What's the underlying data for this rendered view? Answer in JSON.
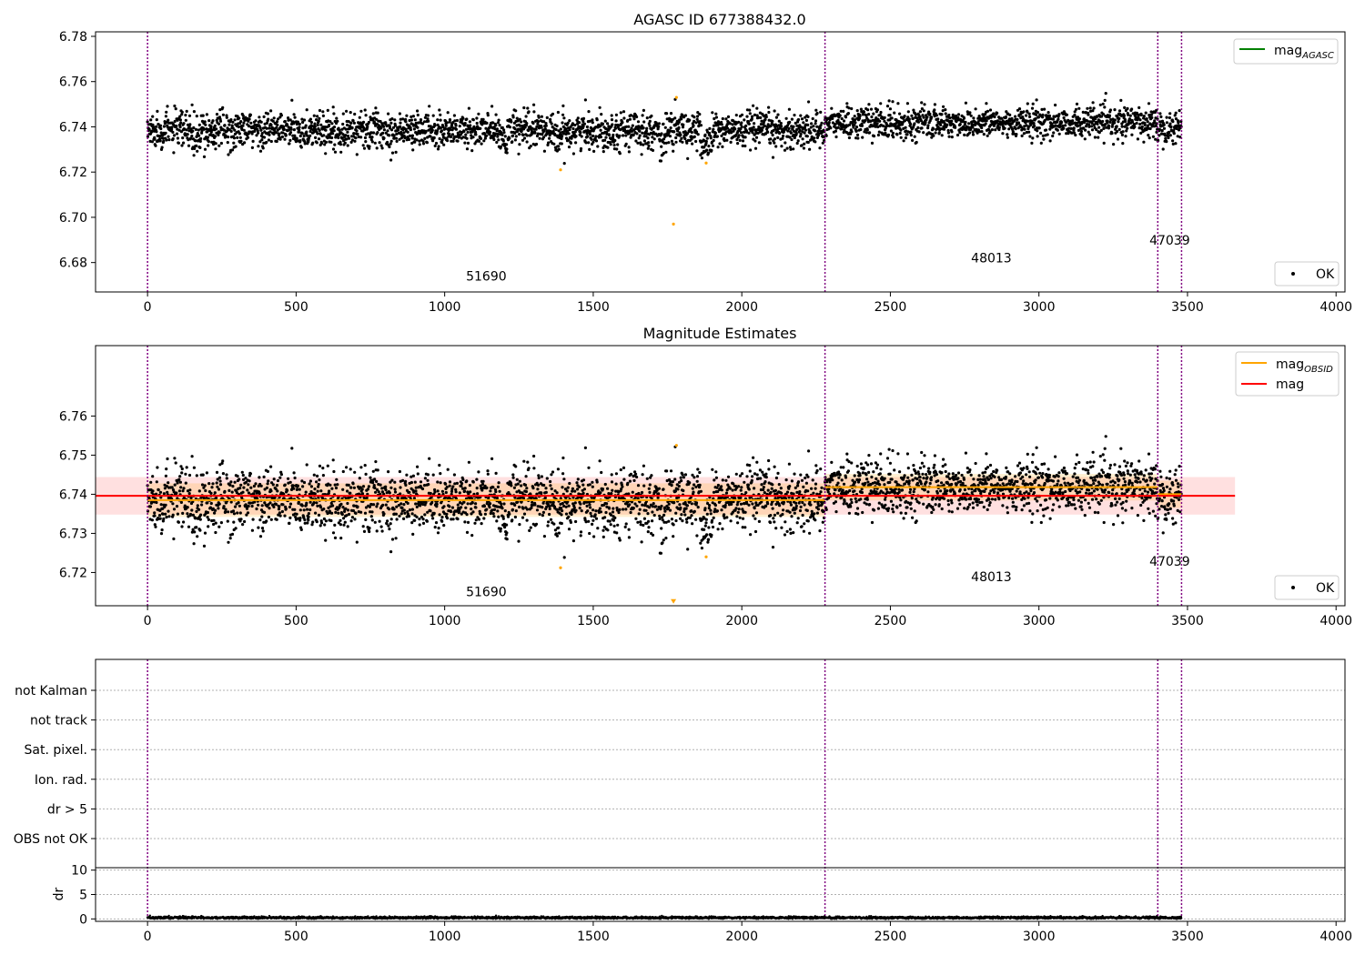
{
  "chart_data": [
    {
      "type": "scatter",
      "title": "AGASC ID 677388432.0",
      "xlim": [
        -175,
        4030
      ],
      "ylim": [
        6.667,
        6.782
      ],
      "xticks": [
        0,
        500,
        1000,
        1500,
        2000,
        2500,
        3000,
        3500,
        4000
      ],
      "yticks": [
        6.68,
        6.7,
        6.72,
        6.74,
        6.76,
        6.78
      ],
      "ytick_labels": [
        "6.68",
        "6.70",
        "6.72",
        "6.74",
        "6.76",
        "6.78"
      ],
      "obsid_boundaries": [
        0,
        2280,
        3400,
        3480
      ],
      "obsid_labels": [
        {
          "text": "51690",
          "x": 1140,
          "y": 6.672
        },
        {
          "text": "48013",
          "x": 2840,
          "y": 6.68
        },
        {
          "text": "47039",
          "x": 3440,
          "y": 6.688
        }
      ],
      "segments": [
        {
          "x0": 0,
          "x1": 2280,
          "mean": 6.7385,
          "std": 0.004
        },
        {
          "x0": 2280,
          "x1": 3400,
          "mean": 6.7418,
          "std": 0.0034
        },
        {
          "x0": 3400,
          "x1": 3480,
          "mean": 6.74,
          "std": 0.0035
        }
      ],
      "n_points": 3480,
      "outliers": [
        {
          "x": 1390,
          "y": 6.721
        },
        {
          "x": 1770,
          "y": 6.697
        },
        {
          "x": 1780,
          "y": 6.753
        },
        {
          "x": 1880,
          "y": 6.724
        }
      ],
      "legend_upper": [
        {
          "name": "mag",
          "sub": "AGASC",
          "color": "#008000"
        }
      ],
      "legend_lower": [
        {
          "name": "OK",
          "color": "#000000"
        }
      ]
    },
    {
      "type": "scatter",
      "title": "Magnitude Estimates",
      "xlim": [
        -175,
        4030
      ],
      "ylim": [
        6.7115,
        6.778
      ],
      "xticks": [
        0,
        500,
        1000,
        1500,
        2000,
        2500,
        3000,
        3500,
        4000
      ],
      "yticks": [
        6.72,
        6.73,
        6.74,
        6.75,
        6.76
      ],
      "ytick_labels": [
        "6.72",
        "6.73",
        "6.74",
        "6.75",
        "6.76"
      ],
      "obsid_boundaries": [
        0,
        2280,
        3400,
        3480
      ],
      "obsid_labels": [
        {
          "text": "51690",
          "x": 1140,
          "y": 6.7139
        },
        {
          "text": "48013",
          "x": 2840,
          "y": 6.7178
        },
        {
          "text": "47039",
          "x": 3440,
          "y": 6.7217
        }
      ],
      "mag_line": {
        "value": 6.7396,
        "band": [
          6.7348,
          6.7444
        ],
        "x0": -175,
        "x1": 3660,
        "color": "#ff0000"
      },
      "obsid_lines": [
        {
          "x0": 0,
          "x1": 2280,
          "value": 6.7385,
          "band": [
            6.7342,
            6.7428
          ]
        },
        {
          "x0": 2280,
          "x1": 3400,
          "value": 6.7418,
          "band": [
            6.7384,
            6.7452
          ]
        },
        {
          "x0": 3400,
          "x1": 3480,
          "value": 6.74,
          "band": [
            6.7365,
            6.7435
          ]
        }
      ],
      "outliers": [
        {
          "x": 1390,
          "y": 6.7212
        },
        {
          "x": 1780,
          "y": 6.7525
        },
        {
          "x": 1880,
          "y": 6.724
        }
      ],
      "offscale_marker": {
        "x": 1770,
        "y": 6.7125
      },
      "legend_upper": [
        {
          "name": "mag",
          "sub": "OBSID",
          "color": "#ffa500"
        },
        {
          "name": "mag",
          "sub": "",
          "color": "#ff0000"
        }
      ],
      "legend_lower": [
        {
          "name": "OK",
          "color": "#000000"
        }
      ]
    },
    {
      "type": "table",
      "flag_labels": [
        "not Kalman",
        "not track",
        "Sat. pixel.",
        "Ion. rad.",
        "dr > 5",
        "OBS not OK"
      ],
      "obsid_boundaries": [
        0,
        2280,
        3400,
        3480
      ]
    },
    {
      "type": "scatter",
      "ylabel": "dr",
      "xlim": [
        -175,
        4030
      ],
      "ylim": [
        -0.5,
        10.5
      ],
      "xticks": [
        0,
        500,
        1000,
        1500,
        2000,
        2500,
        3000,
        3500,
        4000
      ],
      "yticks": [
        0,
        5,
        10
      ],
      "ytick_labels": [
        "0",
        "5",
        "10"
      ],
      "obsid_boundaries": [
        0,
        2280,
        3400,
        3480
      ],
      "dr_mean": 0.25,
      "dr_spread": 0.12,
      "n_points": 3480
    }
  ]
}
